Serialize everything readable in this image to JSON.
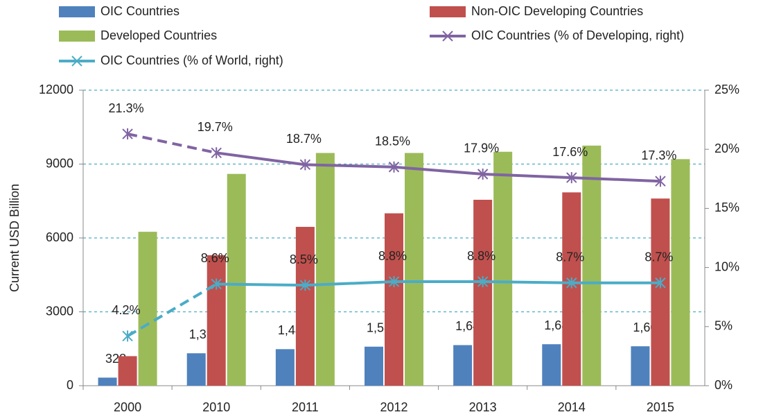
{
  "chart_data": {
    "type": "bar",
    "categories": [
      "2000",
      "2010",
      "2011",
      "2012",
      "2013",
      "2014",
      "2015"
    ],
    "y_label": "Current USD Billion",
    "ylim": [
      0,
      12000
    ],
    "yticks": [
      0,
      3000,
      6000,
      9000,
      12000
    ],
    "y2lim": [
      0,
      25
    ],
    "y2ticks": [
      {
        "value": 0,
        "label": "0%"
      },
      {
        "value": 5,
        "label": "5%"
      },
      {
        "value": 10,
        "label": "10%"
      },
      {
        "value": 15,
        "label": "15%"
      },
      {
        "value": 20,
        "label": "20%"
      },
      {
        "value": 25,
        "label": "25%"
      }
    ],
    "grid": true,
    "series": [
      {
        "name": "OIC Countries",
        "type": "bar",
        "color": "#4f81bd",
        "values": [
          328,
          1317,
          1484,
          1585,
          1648,
          1684,
          1601
        ],
        "value_labels": [
          "328",
          "1,317",
          "1,484",
          "1,585",
          "1,648",
          "1,684",
          "1,601"
        ]
      },
      {
        "name": "Non-OIC Developing Countries",
        "type": "bar",
        "color": "#c0504d",
        "values": [
          1200,
          5300,
          6450,
          7000,
          7550,
          7850,
          7600
        ]
      },
      {
        "name": "Developed Countries",
        "type": "bar",
        "color": "#9bbb59",
        "values": [
          6250,
          8600,
          9450,
          9450,
          9500,
          9750,
          9200
        ]
      },
      {
        "name": "OIC Countries (% of Developing, right)",
        "type": "line",
        "axis": "y2",
        "color": "#8064a2",
        "dashed_first_segment": true,
        "values": [
          21.3,
          19.7,
          18.7,
          18.5,
          17.9,
          17.6,
          17.3
        ],
        "value_labels": [
          "21.3%",
          "19.7%",
          "18.7%",
          "18.5%",
          "17.9%",
          "17.6%",
          "17.3%"
        ]
      },
      {
        "name": "OIC Countries (% of World, right)",
        "type": "line",
        "axis": "y2",
        "color": "#4bacc6",
        "dashed_first_segment": true,
        "values": [
          4.2,
          8.6,
          8.5,
          8.8,
          8.8,
          8.7,
          8.7
        ],
        "value_labels": [
          "4.2%",
          "8.6%",
          "8.5%",
          "8.8%",
          "8.8%",
          "8.7%",
          "8.7%"
        ]
      }
    ]
  }
}
